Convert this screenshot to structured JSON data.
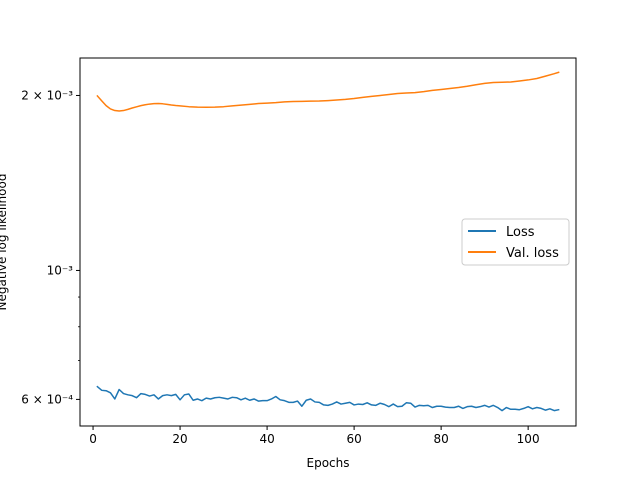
{
  "chart_data": {
    "type": "line",
    "title": "",
    "xlabel": "Epochs",
    "ylabel": "Negative log likelihood",
    "xscale": "linear",
    "yscale": "log",
    "xlim": [
      -3,
      111
    ],
    "ylim": [
      0.00054,
      0.00232
    ],
    "grid": false,
    "legend_position": "center-right",
    "x_ticks": [
      0,
      20,
      40,
      60,
      80,
      100
    ],
    "x_tick_labels": [
      "0",
      "20",
      "40",
      "60",
      "80",
      "100"
    ],
    "y_major_ticks": [
      0.0006,
      0.001,
      0.002
    ],
    "y_major_tick_labels": [
      "6 × 10⁻⁴",
      "10⁻³",
      "2 × 10⁻³"
    ],
    "y_minor_ticks": [
      0.0007,
      0.0008,
      0.0009
    ],
    "series": [
      {
        "name": "Loss",
        "color": "#1f77b4",
        "x": [
          1,
          2,
          3,
          4,
          5,
          6,
          7,
          8,
          9,
          10,
          11,
          12,
          13,
          14,
          15,
          16,
          17,
          18,
          19,
          20,
          21,
          22,
          23,
          24,
          25,
          26,
          27,
          28,
          29,
          30,
          31,
          32,
          33,
          34,
          35,
          36,
          37,
          38,
          39,
          40,
          41,
          42,
          43,
          44,
          45,
          46,
          47,
          48,
          49,
          50,
          51,
          52,
          53,
          54,
          55,
          56,
          57,
          58,
          59,
          60,
          61,
          62,
          63,
          64,
          65,
          66,
          67,
          68,
          69,
          70,
          71,
          72,
          73,
          74,
          75,
          76,
          77,
          78,
          79,
          80,
          81,
          82,
          83,
          84,
          85,
          86,
          87,
          88,
          89,
          90,
          91,
          92,
          93,
          94,
          95,
          96,
          97,
          98,
          99,
          100,
          101,
          102,
          103,
          104,
          105,
          106,
          107
        ],
        "y": [
          0.000631,
          0.000622,
          0.000621,
          0.000616,
          0.000601,
          0.000624,
          0.000614,
          0.000611,
          0.000609,
          0.000604,
          0.000614,
          0.000612,
          0.000608,
          0.000611,
          0.000601,
          0.000609,
          0.000611,
          0.000609,
          0.000612,
          0.000599,
          0.000611,
          0.000613,
          0.000598,
          0.000601,
          0.000597,
          0.000603,
          0.000601,
          0.000604,
          0.000605,
          0.000603,
          0.000601,
          0.000605,
          0.000604,
          0.000599,
          0.000603,
          0.000598,
          0.000601,
          0.000596,
          0.000597,
          0.000597,
          0.000601,
          0.000607,
          0.000599,
          0.000597,
          0.000593,
          0.000593,
          0.000596,
          0.000584,
          0.000598,
          0.000601,
          0.000594,
          0.000593,
          0.000587,
          0.000586,
          0.000589,
          0.000594,
          0.000589,
          0.000591,
          0.000593,
          0.000587,
          0.000589,
          0.000588,
          0.000592,
          0.000587,
          0.000586,
          0.000591,
          0.000588,
          0.000583,
          0.000589,
          0.000583,
          0.000584,
          0.000592,
          0.000591,
          0.000582,
          0.000586,
          0.000585,
          0.000586,
          0.000581,
          0.000584,
          0.000584,
          0.000582,
          0.000581,
          0.000581,
          0.000584,
          0.000579,
          0.000583,
          0.000584,
          0.000581,
          0.000583,
          0.000586,
          0.000582,
          0.000586,
          0.000581,
          0.000574,
          0.000581,
          0.000577,
          0.000577,
          0.000576,
          0.000579,
          0.000583,
          0.000578,
          0.000581,
          0.000579,
          0.000575,
          0.000578,
          0.000574,
          0.000576
        ]
      },
      {
        "name": "Val. loss",
        "color": "#ff7f0e",
        "x": [
          1,
          2,
          3,
          4,
          5,
          6,
          7,
          8,
          9,
          10,
          11,
          12,
          13,
          14,
          15,
          16,
          17,
          18,
          19,
          20,
          22,
          24,
          26,
          28,
          30,
          32,
          34,
          36,
          38,
          40,
          42,
          44,
          46,
          48,
          50,
          52,
          54,
          56,
          58,
          60,
          62,
          64,
          66,
          68,
          70,
          72,
          74,
          76,
          78,
          80,
          82,
          84,
          86,
          88,
          90,
          92,
          94,
          96,
          98,
          100,
          102,
          104,
          106,
          107
        ],
        "y": [
          0.001996,
          0.001958,
          0.001921,
          0.001896,
          0.001884,
          0.001881,
          0.001884,
          0.001893,
          0.001903,
          0.001912,
          0.001921,
          0.001928,
          0.001933,
          0.001936,
          0.001937,
          0.001935,
          0.001931,
          0.001926,
          0.001922,
          0.001919,
          0.001913,
          0.00191,
          0.001909,
          0.00191,
          0.001913,
          0.001919,
          0.001925,
          0.001931,
          0.001937,
          0.00194,
          0.001944,
          0.00195,
          0.001953,
          0.001954,
          0.001956,
          0.001957,
          0.00196,
          0.001964,
          0.001969,
          0.001976,
          0.001985,
          0.001993,
          0.002,
          0.002008,
          0.002016,
          0.00202,
          0.002023,
          0.002031,
          0.002041,
          0.002048,
          0.002056,
          0.002064,
          0.002074,
          0.002087,
          0.002098,
          0.002105,
          0.002107,
          0.00211,
          0.002118,
          0.002127,
          0.002139,
          0.002159,
          0.00218,
          0.002192
        ]
      }
    ]
  }
}
